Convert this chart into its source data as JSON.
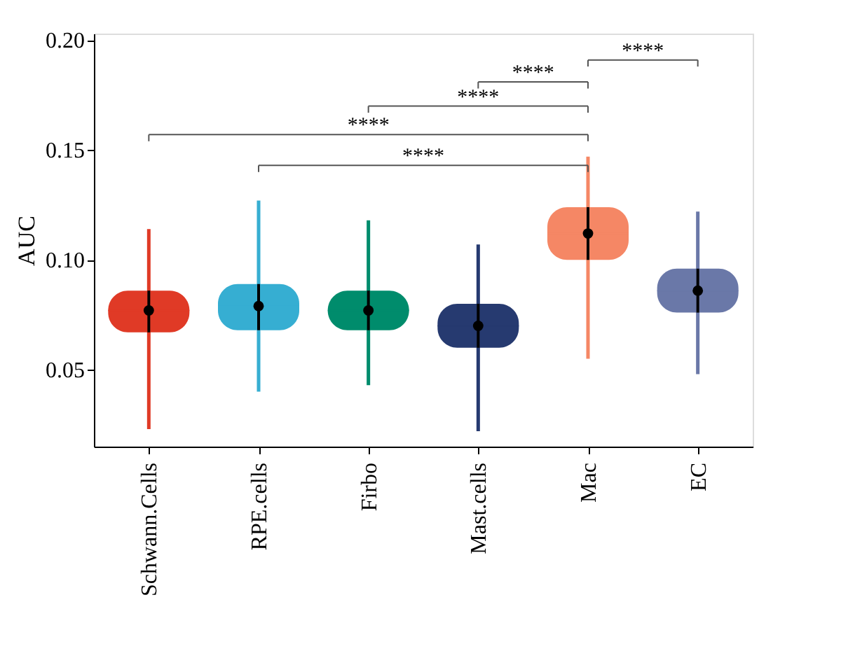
{
  "chart_data": {
    "type": "box",
    "ylabel": "AUC",
    "categories": [
      "Schwann.Cells",
      "RPE.cells",
      "Firbo",
      "Mast.cells",
      "Mac",
      "EC"
    ],
    "colors": [
      "#e03a26",
      "#36aed2",
      "#008c6c",
      "#263a70",
      "#f58765",
      "#6a78a8"
    ],
    "boxes": [
      {
        "low": 0.023,
        "q1": 0.067,
        "median": 0.077,
        "q3": 0.086,
        "high": 0.114
      },
      {
        "low": 0.04,
        "q1": 0.068,
        "median": 0.079,
        "q3": 0.089,
        "high": 0.127
      },
      {
        "low": 0.043,
        "q1": 0.068,
        "median": 0.077,
        "q3": 0.086,
        "high": 0.118
      },
      {
        "low": 0.022,
        "q1": 0.06,
        "median": 0.07,
        "q3": 0.08,
        "high": 0.107
      },
      {
        "low": 0.055,
        "q1": 0.1,
        "median": 0.112,
        "q3": 0.124,
        "high": 0.147
      },
      {
        "low": 0.048,
        "q1": 0.076,
        "median": 0.086,
        "q3": 0.096,
        "high": 0.122
      }
    ],
    "series": [
      {
        "type": "scatter",
        "color": "#000000",
        "x": [
          "Schwann.Cells",
          "RPE.cells",
          "Firbo",
          "Mast.cells",
          "Mac",
          "EC"
        ],
        "values": [
          0.077,
          0.079,
          0.077,
          0.07,
          0.112,
          0.086
        ],
        "errors": [
          [
            0.067,
            0.086
          ],
          [
            0.068,
            0.089
          ],
          [
            0.068,
            0.086
          ],
          [
            0.06,
            0.08
          ],
          [
            0.1,
            0.124
          ],
          [
            0.076,
            0.096
          ]
        ]
      }
    ],
    "ylim": [
      0.015,
      0.203
    ],
    "yticks": [
      0.05,
      {
        "value": 0.1,
        "label": "0.10"
      },
      0.15,
      {
        "value": 0.2,
        "label": "0.20"
      }
    ],
    "annotations": [
      "****",
      "****",
      "****",
      "****",
      "****"
    ],
    "grid": false,
    "legend": false
  }
}
